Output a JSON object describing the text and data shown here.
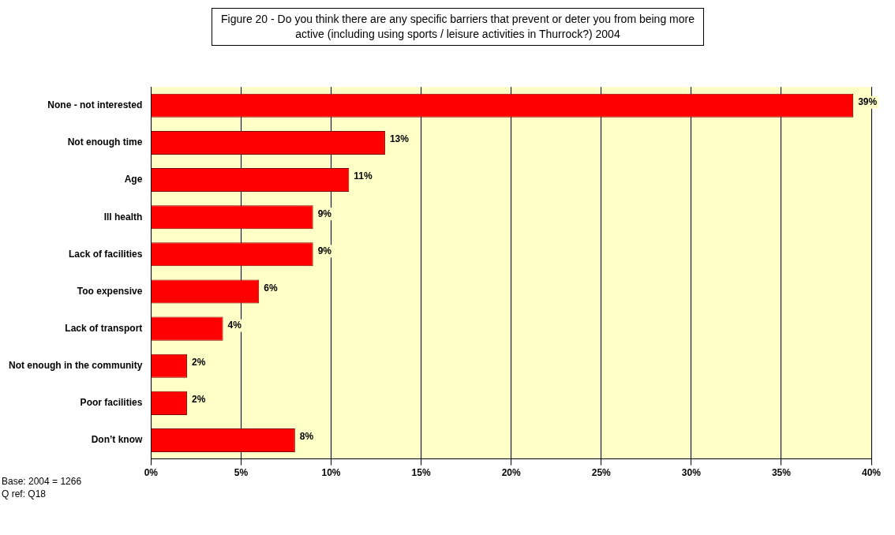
{
  "chart_data": {
    "type": "bar",
    "orientation": "horizontal",
    "title": "Figure 20 - Do you think there are any specific barriers that prevent or deter you from being more active (including using sports / leisure activities in Thurrock?) 2004",
    "categories": [
      "None - not interested",
      "Not enough time",
      "Age",
      "Ill health",
      "Lack of facilities",
      "Too expensive",
      "Lack of transport",
      "Not enough in the community",
      "Poor facilities",
      "Don’t know"
    ],
    "values": [
      39,
      13,
      11,
      9,
      9,
      6,
      4,
      2,
      2,
      8
    ],
    "color": "#ff0000",
    "xlim": [
      0,
      40
    ],
    "xticks": [
      {
        "value": 0,
        "label": "0%"
      },
      {
        "value": 5,
        "label": "5%"
      },
      {
        "value": 10,
        "label": "10%"
      },
      {
        "value": 15,
        "label": "15%"
      },
      {
        "value": 20,
        "label": "20%"
      },
      {
        "value": 25,
        "label": "25%"
      },
      {
        "value": 30,
        "label": "30%"
      },
      {
        "value": 35,
        "label": "35%"
      },
      {
        "value": 40,
        "label": "40%"
      }
    ],
    "grid": "x",
    "legend": false,
    "value_labels": [
      "39%",
      "13%",
      "11%",
      "9%",
      "9%",
      "6%",
      "4%",
      "2%",
      "2%",
      "8%"
    ],
    "annotations": [
      "Base: 2004 = 1266",
      "Q ref: Q18"
    ]
  }
}
